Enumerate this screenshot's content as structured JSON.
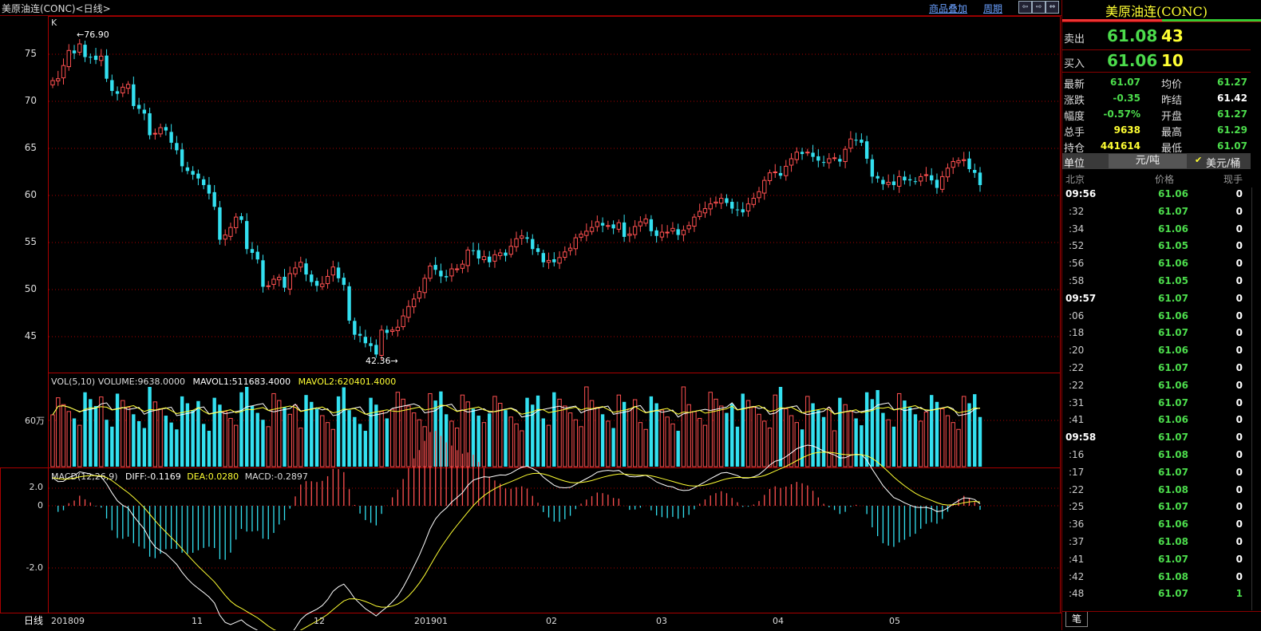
{
  "header": {
    "title": "美原油连(CONC)<日线>",
    "overlay_link": "商品叠加",
    "period_link": "周期",
    "nav_buttons": [
      "⇦",
      "⇨",
      "⇔"
    ]
  },
  "kline": {
    "label": "K",
    "y_ticks": [
      "75",
      "70",
      "65",
      "60",
      "55",
      "50",
      "45"
    ],
    "high_label": "←76.90",
    "low_label": "42.36→"
  },
  "volume": {
    "legend_prefix": "VOL(5,10) VOLUME:9638.0000",
    "legend_mavol1": "MAVOL1:511683.4000",
    "legend_mavol2": "MAVOL2:620401.4000",
    "y_tick": "60万"
  },
  "macd": {
    "legend_prefix": "MACD(12,26,9)",
    "legend_diff": "DIFF:-0.1169",
    "legend_dea": "DEA:0.0280",
    "legend_macd": "MACD:-0.2897",
    "y_ticks": [
      "2.0",
      "0",
      "-2.0"
    ]
  },
  "x_axis": {
    "period_label": "日线",
    "labels": [
      "201809",
      "11",
      "12",
      "201901",
      "02",
      "03",
      "04",
      "05"
    ]
  },
  "quote": {
    "name": "美原油连(CONC)",
    "sell_label": "卖出",
    "sell_price": "61.08",
    "sell_qty": "43",
    "buy_label": "买入",
    "buy_price": "61.06",
    "buy_qty": "10",
    "stats": [
      {
        "l1": "最新",
        "v1": "61.07",
        "c1": "#4cdc4c",
        "l2": "均价",
        "v2": "61.27",
        "c2": "#4cdc4c"
      },
      {
        "l1": "涨跌",
        "v1": "-0.35",
        "c1": "#4cdc4c",
        "l2": "昨结",
        "v2": "61.42",
        "c2": "#ffffff"
      },
      {
        "l1": "幅度",
        "v1": "-0.57%",
        "c1": "#4cdc4c",
        "l2": "开盘",
        "v2": "61.27",
        "c2": "#4cdc4c"
      },
      {
        "l1": "总手",
        "v1": "9638",
        "c1": "#ffff33",
        "l2": "最高",
        "v2": "61.29",
        "c2": "#4cdc4c"
      },
      {
        "l1": "持仓",
        "v1": "441614",
        "c1": "#ffff33",
        "l2": "最低",
        "v2": "61.07",
        "c2": "#4cdc4c"
      }
    ],
    "unit_label": "单位",
    "unit_cny": "元/吨",
    "unit_usd": "美元/桶",
    "check_mark": "✔",
    "col_city": "北京",
    "col_price": "价格",
    "col_vol": "现手",
    "bottom_tab": "笔"
  },
  "ticks": [
    {
      "t": "09:56",
      "p": "61.06",
      "v": "0",
      "major": true
    },
    {
      "t": ":32",
      "p": "61.07",
      "v": "0"
    },
    {
      "t": ":34",
      "p": "61.06",
      "v": "0"
    },
    {
      "t": ":52",
      "p": "61.05",
      "v": "0"
    },
    {
      "t": ":56",
      "p": "61.06",
      "v": "0"
    },
    {
      "t": ":58",
      "p": "61.05",
      "v": "0"
    },
    {
      "t": "09:57",
      "p": "61.07",
      "v": "0",
      "major": true
    },
    {
      "t": ":06",
      "p": "61.06",
      "v": "0"
    },
    {
      "t": ":18",
      "p": "61.07",
      "v": "0"
    },
    {
      "t": ":20",
      "p": "61.06",
      "v": "0"
    },
    {
      "t": ":22",
      "p": "61.07",
      "v": "0"
    },
    {
      "t": ":22",
      "p": "61.06",
      "v": "0"
    },
    {
      "t": ":31",
      "p": "61.07",
      "v": "0"
    },
    {
      "t": ":41",
      "p": "61.06",
      "v": "0"
    },
    {
      "t": "09:58",
      "p": "61.07",
      "v": "0",
      "major": true
    },
    {
      "t": ":16",
      "p": "61.08",
      "v": "0"
    },
    {
      "t": ":17",
      "p": "61.07",
      "v": "0"
    },
    {
      "t": ":22",
      "p": "61.08",
      "v": "0"
    },
    {
      "t": ":25",
      "p": "61.07",
      "v": "0"
    },
    {
      "t": ":36",
      "p": "61.06",
      "v": "0"
    },
    {
      "t": ":37",
      "p": "61.08",
      "v": "0"
    },
    {
      "t": ":41",
      "p": "61.07",
      "v": "0"
    },
    {
      "t": ":42",
      "p": "61.08",
      "v": "0"
    },
    {
      "t": ":48",
      "p": "61.07",
      "v": "1"
    }
  ],
  "chart_data": {
    "type": "candlestick",
    "series_closes": [
      72.2,
      72.4,
      73.8,
      75.4,
      75.1,
      76.1,
      74.7,
      74.7,
      74.4,
      74.8,
      72.4,
      71.1,
      70.8,
      71.5,
      71.8,
      69.5,
      69.2,
      68.7,
      66.4,
      66.6,
      67.2,
      66.9,
      65.6,
      64.8,
      63.1,
      62.6,
      62.2,
      61.8,
      61.1,
      60.2,
      58.8,
      55.3,
      55.8,
      56.6,
      57.7,
      57.4,
      54.3,
      53.9,
      53.2,
      50.3,
      50.4,
      51.1,
      51.3,
      50.2,
      51.7,
      52.3,
      52.9,
      51.6,
      50.8,
      50.4,
      50.6,
      51.4,
      52.4,
      51.2,
      50.5,
      46.7,
      45.2,
      45.1,
      44.3,
      44.0,
      43.1,
      45.7,
      45.4,
      45.7,
      46.0,
      47.2,
      48.2,
      49.0,
      49.8,
      51.2,
      52.5,
      52.1,
      51.4,
      51.3,
      52.2,
      52.2,
      52.7,
      54.2,
      54.1,
      53.3,
      53.5,
      52.9,
      53.7,
      53.9,
      53.6,
      54.6,
      55.4,
      55.7,
      55.4,
      54.3,
      54.0,
      52.9,
      53.1,
      52.9,
      53.4,
      54.0,
      54.4,
      55.5,
      55.9,
      56.2,
      56.6,
      57.2,
      56.8,
      56.8,
      56.5,
      57.1,
      55.6,
      55.9,
      56.7,
      57.2,
      57.5,
      56.2,
      55.7,
      56.1,
      56.1,
      56.5,
      55.8,
      56.3,
      56.8,
      57.7,
      58.3,
      58.6,
      59.1,
      59.3,
      59.7,
      59.2,
      58.6,
      58.5,
      58.2,
      59.1,
      59.7,
      60.4,
      61.6,
      62.4,
      62.5,
      62.1,
      63.1,
      63.9,
      64.6,
      64.4,
      64.6,
      64.1,
      63.7,
      63.5,
      63.9,
      64.0,
      63.6,
      64.9,
      66.0,
      65.9,
      65.6,
      63.9,
      62.0,
      61.8,
      61.2,
      61.4,
      61.1,
      62.0,
      61.6,
      61.6,
      61.5,
      62.0,
      62.2,
      61.6,
      60.8,
      62.0,
      62.9,
      63.6,
      63.7,
      63.8,
      62.8,
      62.4,
      61.1
    ]
  }
}
